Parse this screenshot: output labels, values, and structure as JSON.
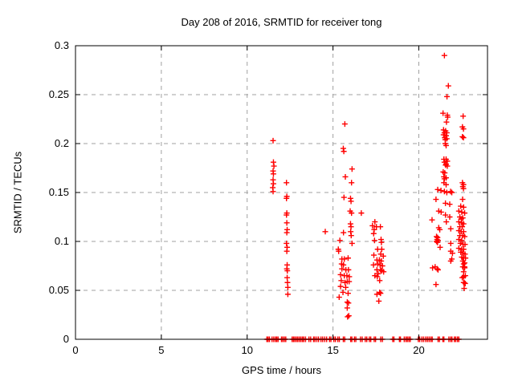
{
  "chart_data": {
    "type": "scatter",
    "title": "Day 208 of 2016, SRMTID for receiver tong",
    "xlabel": "GPS time / hours",
    "ylabel": "SRMTID / TECUs",
    "xlim": [
      0,
      24
    ],
    "ylim": [
      0,
      0.3
    ],
    "xticks": [
      {
        "v": 0,
        "label": "0"
      },
      {
        "v": 5,
        "label": "5"
      },
      {
        "v": 10,
        "label": "10"
      },
      {
        "v": 15,
        "label": "15"
      },
      {
        "v": 20,
        "label": "20"
      }
    ],
    "yticks": [
      {
        "v": 0,
        "label": "0"
      },
      {
        "v": 0.05,
        "label": "0.05"
      },
      {
        "v": 0.1,
        "label": "0.1"
      },
      {
        "v": 0.15,
        "label": "0.15"
      },
      {
        "v": 0.2,
        "label": "0.2"
      },
      {
        "v": 0.25,
        "label": "0.25"
      },
      {
        "v": 0.3,
        "label": "0.3"
      }
    ],
    "grid": "dashed",
    "legend": "none",
    "marker": "plus",
    "marker_color": "#ff0000",
    "grid_color": "#a0a0a0",
    "border_color": "#000000",
    "series": [
      {
        "name": "SRMTID",
        "color": "#ff0000",
        "points": [
          [
            11.51,
            0.203
          ],
          [
            11.53,
            0.181
          ],
          [
            11.56,
            0.177
          ],
          [
            11.51,
            0.172
          ],
          [
            11.53,
            0.169
          ],
          [
            11.51,
            0.163
          ],
          [
            11.53,
            0.159
          ],
          [
            11.49,
            0.155
          ],
          [
            11.51,
            0.151
          ],
          [
            12.29,
            0.16
          ],
          [
            12.31,
            0.146
          ],
          [
            12.29,
            0.144
          ],
          [
            12.31,
            0.129
          ],
          [
            12.29,
            0.127
          ],
          [
            12.31,
            0.119
          ],
          [
            12.33,
            0.112
          ],
          [
            12.31,
            0.109
          ],
          [
            12.29,
            0.098
          ],
          [
            12.33,
            0.094
          ],
          [
            12.31,
            0.09
          ],
          [
            12.33,
            0.076
          ],
          [
            12.31,
            0.072
          ],
          [
            12.34,
            0.07
          ],
          [
            12.33,
            0.063
          ],
          [
            12.35,
            0.058
          ],
          [
            12.37,
            0.053
          ],
          [
            12.37,
            0.046
          ],
          [
            14.55,
            0.11
          ],
          [
            15.69,
            0.22
          ],
          [
            15.6,
            0.195
          ],
          [
            15.63,
            0.192
          ],
          [
            16.11,
            0.174
          ],
          [
            15.72,
            0.166
          ],
          [
            16.08,
            0.16
          ],
          [
            15.64,
            0.145
          ],
          [
            16.02,
            0.144
          ],
          [
            16.05,
            0.141
          ],
          [
            16.0,
            0.131
          ],
          [
            16.08,
            0.129
          ],
          [
            16.65,
            0.129
          ],
          [
            16.02,
            0.118
          ],
          [
            16.05,
            0.115
          ],
          [
            15.61,
            0.109
          ],
          [
            16.03,
            0.11
          ],
          [
            16.06,
            0.106
          ],
          [
            16.11,
            0.098
          ],
          [
            15.4,
            0.101
          ],
          [
            15.31,
            0.092
          ],
          [
            15.33,
            0.09
          ],
          [
            15.52,
            0.082
          ],
          [
            15.66,
            0.082
          ],
          [
            15.88,
            0.083
          ],
          [
            15.5,
            0.077
          ],
          [
            15.61,
            0.076
          ],
          [
            15.52,
            0.072
          ],
          [
            15.75,
            0.071
          ],
          [
            15.9,
            0.071
          ],
          [
            15.44,
            0.066
          ],
          [
            15.66,
            0.065
          ],
          [
            15.81,
            0.065
          ],
          [
            15.95,
            0.064
          ],
          [
            15.48,
            0.06
          ],
          [
            15.83,
            0.059
          ],
          [
            15.94,
            0.059
          ],
          [
            15.7,
            0.058
          ],
          [
            15.44,
            0.054
          ],
          [
            15.74,
            0.053
          ],
          [
            15.58,
            0.048
          ],
          [
            15.88,
            0.047
          ],
          [
            15.36,
            0.043
          ],
          [
            15.83,
            0.038
          ],
          [
            15.9,
            0.037
          ],
          [
            15.83,
            0.032
          ],
          [
            15.92,
            0.024
          ],
          [
            15.85,
            0.023
          ],
          [
            17.44,
            0.12
          ],
          [
            17.3,
            0.116
          ],
          [
            17.53,
            0.115
          ],
          [
            17.76,
            0.115
          ],
          [
            17.4,
            0.112
          ],
          [
            17.37,
            0.108
          ],
          [
            17.42,
            0.101
          ],
          [
            17.8,
            0.102
          ],
          [
            17.82,
            0.099
          ],
          [
            17.6,
            0.092
          ],
          [
            17.84,
            0.092
          ],
          [
            17.38,
            0.086
          ],
          [
            17.78,
            0.087
          ],
          [
            17.93,
            0.085
          ],
          [
            17.56,
            0.081
          ],
          [
            17.7,
            0.081
          ],
          [
            17.81,
            0.08
          ],
          [
            17.36,
            0.076
          ],
          [
            17.6,
            0.077
          ],
          [
            17.74,
            0.076
          ],
          [
            17.88,
            0.075
          ],
          [
            17.56,
            0.071
          ],
          [
            17.77,
            0.071
          ],
          [
            17.84,
            0.07
          ],
          [
            17.95,
            0.069
          ],
          [
            17.63,
            0.067
          ],
          [
            17.44,
            0.065
          ],
          [
            17.58,
            0.064
          ],
          [
            17.72,
            0.06
          ],
          [
            17.72,
            0.048
          ],
          [
            17.77,
            0.047
          ],
          [
            17.56,
            0.046
          ],
          [
            17.67,
            0.039
          ],
          [
            21.1,
            0.153
          ],
          [
            21.29,
            0.152
          ],
          [
            21.0,
            0.143
          ],
          [
            21.16,
            0.131
          ],
          [
            21.3,
            0.13
          ],
          [
            20.77,
            0.122
          ],
          [
            21.16,
            0.114
          ],
          [
            21.22,
            0.112
          ],
          [
            21.03,
            0.105
          ],
          [
            21.09,
            0.104
          ],
          [
            21.06,
            0.102
          ],
          [
            21.12,
            0.101
          ],
          [
            21.03,
            0.1
          ],
          [
            21.09,
            0.099
          ],
          [
            21.24,
            0.094
          ],
          [
            20.8,
            0.073
          ],
          [
            20.95,
            0.074
          ],
          [
            21.07,
            0.072
          ],
          [
            21.12,
            0.071
          ],
          [
            21.0,
            0.056
          ],
          [
            21.49,
            0.29
          ],
          [
            21.72,
            0.259
          ],
          [
            21.64,
            0.248
          ],
          [
            21.41,
            0.231
          ],
          [
            21.66,
            0.229
          ],
          [
            21.68,
            0.227
          ],
          [
            21.61,
            0.222
          ],
          [
            21.44,
            0.214
          ],
          [
            21.56,
            0.213
          ],
          [
            21.49,
            0.211
          ],
          [
            21.63,
            0.211
          ],
          [
            21.44,
            0.209
          ],
          [
            21.59,
            0.208
          ],
          [
            21.51,
            0.206
          ],
          [
            21.63,
            0.205
          ],
          [
            21.54,
            0.204
          ],
          [
            21.54,
            0.2
          ],
          [
            21.59,
            0.198
          ],
          [
            21.46,
            0.184
          ],
          [
            21.59,
            0.184
          ],
          [
            21.66,
            0.182
          ],
          [
            21.49,
            0.181
          ],
          [
            21.59,
            0.179
          ],
          [
            21.56,
            0.178
          ],
          [
            21.66,
            0.177
          ],
          [
            21.42,
            0.171
          ],
          [
            21.51,
            0.17
          ],
          [
            21.46,
            0.166
          ],
          [
            21.59,
            0.165
          ],
          [
            21.49,
            0.164
          ],
          [
            21.46,
            0.16
          ],
          [
            21.59,
            0.158
          ],
          [
            21.49,
            0.151
          ],
          [
            21.63,
            0.15
          ],
          [
            21.85,
            0.151
          ],
          [
            21.92,
            0.15
          ],
          [
            21.55,
            0.139
          ],
          [
            21.8,
            0.138
          ],
          [
            21.55,
            0.127
          ],
          [
            21.8,
            0.125
          ],
          [
            21.6,
            0.12
          ],
          [
            21.86,
            0.113
          ],
          [
            21.86,
            0.098
          ],
          [
            21.86,
            0.09
          ],
          [
            21.96,
            0.088
          ],
          [
            21.92,
            0.082
          ],
          [
            21.86,
            0.08
          ],
          [
            22.58,
            0.228
          ],
          [
            22.54,
            0.217
          ],
          [
            22.6,
            0.215
          ],
          [
            22.54,
            0.207
          ],
          [
            22.6,
            0.206
          ],
          [
            22.54,
            0.16
          ],
          [
            22.6,
            0.158
          ],
          [
            22.56,
            0.156
          ],
          [
            22.6,
            0.154
          ],
          [
            22.55,
            0.143
          ],
          [
            22.44,
            0.136
          ],
          [
            22.61,
            0.135
          ],
          [
            22.33,
            0.131
          ],
          [
            22.5,
            0.13
          ],
          [
            22.67,
            0.129
          ],
          [
            22.39,
            0.125
          ],
          [
            22.56,
            0.124
          ],
          [
            22.47,
            0.123
          ],
          [
            22.33,
            0.12
          ],
          [
            22.5,
            0.119
          ],
          [
            22.61,
            0.118
          ],
          [
            22.39,
            0.115
          ],
          [
            22.53,
            0.115
          ],
          [
            22.33,
            0.111
          ],
          [
            22.47,
            0.11
          ],
          [
            22.61,
            0.11
          ],
          [
            22.39,
            0.106
          ],
          [
            22.56,
            0.106
          ],
          [
            22.67,
            0.105
          ],
          [
            22.33,
            0.102
          ],
          [
            22.5,
            0.101
          ],
          [
            22.42,
            0.098
          ],
          [
            22.58,
            0.097
          ],
          [
            22.69,
            0.097
          ],
          [
            22.33,
            0.093
          ],
          [
            22.5,
            0.092
          ],
          [
            22.61,
            0.092
          ],
          [
            22.44,
            0.089
          ],
          [
            22.58,
            0.088
          ],
          [
            22.69,
            0.087
          ],
          [
            22.5,
            0.084
          ],
          [
            22.61,
            0.083
          ],
          [
            22.72,
            0.083
          ],
          [
            22.56,
            0.08
          ],
          [
            22.67,
            0.078
          ],
          [
            22.61,
            0.077
          ],
          [
            22.56,
            0.074
          ],
          [
            22.67,
            0.073
          ],
          [
            22.61,
            0.069
          ],
          [
            22.53,
            0.063
          ],
          [
            22.61,
            0.064
          ],
          [
            22.61,
            0.058
          ],
          [
            22.66,
            0.074
          ],
          [
            22.71,
            0.065
          ],
          [
            22.64,
            0.058
          ],
          [
            22.7,
            0.057
          ],
          [
            22.64,
            0.052
          ]
        ],
        "zero_hours": [
          11.15,
          11.22,
          11.3,
          11.45,
          11.55,
          11.65,
          11.72,
          11.8,
          12.0,
          12.08,
          12.17,
          12.25,
          12.62,
          12.7,
          12.78,
          12.87,
          12.95,
          13.04,
          13.13,
          13.22,
          13.3,
          13.4,
          13.6,
          13.7,
          13.87,
          13.95,
          14.06,
          14.16,
          14.3,
          14.4,
          14.52,
          14.63,
          14.8,
          14.88,
          15.05,
          15.14,
          15.28,
          15.37,
          15.6,
          15.68,
          16.03,
          16.1,
          16.25,
          16.33,
          16.6,
          16.7,
          16.88,
          16.97,
          17.12,
          17.2,
          17.4,
          17.48,
          17.78,
          17.88,
          18.48,
          18.55,
          18.87,
          18.93,
          19.15,
          19.25,
          19.33,
          19.42,
          19.5,
          19.97,
          20.05,
          20.18,
          20.28,
          20.4,
          20.5,
          20.6,
          20.7,
          20.78,
          21.12,
          21.2,
          21.4,
          21.46,
          21.75,
          21.85,
          21.93,
          22.07,
          22.15,
          22.25,
          22.33
        ]
      }
    ]
  }
}
